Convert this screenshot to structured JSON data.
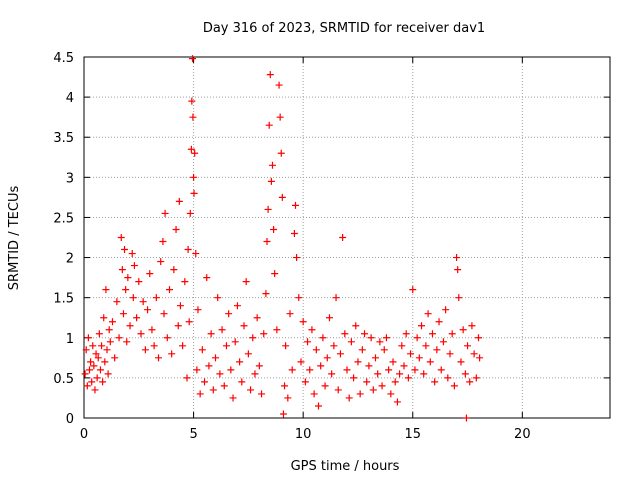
{
  "chart_data": {
    "type": "scatter",
    "title": "Day 316 of 2023, SRMTID for receiver dav1",
    "xlabel": "GPS time / hours",
    "ylabel": "SRMTID / TECUs",
    "xlim": [
      0,
      24
    ],
    "ylim": [
      0,
      4.5
    ],
    "x_ticks": [
      0,
      5,
      10,
      15,
      20
    ],
    "x_tick_labels": [
      "0",
      "5",
      "10",
      "15",
      "20"
    ],
    "y_ticks": [
      0,
      0.5,
      1,
      1.5,
      2,
      2.5,
      3,
      3.5,
      4,
      4.5
    ],
    "y_tick_labels": [
      "0",
      "0.5",
      "1",
      "1.5",
      "2",
      "2.5",
      "3",
      "3.5",
      "4",
      "4.5"
    ],
    "grid": true,
    "marker": "+",
    "series": [
      {
        "name": "dav1",
        "color": "#ff0000",
        "points": [
          [
            0.05,
            0.55
          ],
          [
            0.1,
            0.85
          ],
          [
            0.15,
            0.4
          ],
          [
            0.2,
            1.0
          ],
          [
            0.25,
            0.6
          ],
          [
            0.3,
            0.7
          ],
          [
            0.35,
            0.45
          ],
          [
            0.4,
            0.9
          ],
          [
            0.45,
            0.65
          ],
          [
            0.5,
            0.35
          ],
          [
            0.55,
            0.8
          ],
          [
            0.6,
            0.5
          ],
          [
            0.65,
            0.75
          ],
          [
            0.7,
            1.05
          ],
          [
            0.75,
            0.6
          ],
          [
            0.8,
            0.9
          ],
          [
            0.85,
            0.45
          ],
          [
            0.9,
            1.25
          ],
          [
            0.95,
            0.7
          ],
          [
            1.0,
            1.6
          ],
          [
            1.05,
            0.85
          ],
          [
            1.1,
            0.55
          ],
          [
            1.15,
            1.1
          ],
          [
            1.2,
            0.95
          ],
          [
            1.3,
            1.2
          ],
          [
            1.4,
            0.75
          ],
          [
            1.5,
            1.45
          ],
          [
            1.6,
            1.0
          ],
          [
            1.7,
            2.25
          ],
          [
            1.75,
            1.85
          ],
          [
            1.8,
            1.3
          ],
          [
            1.85,
            2.1
          ],
          [
            1.9,
            1.6
          ],
          [
            1.95,
            0.95
          ],
          [
            2.0,
            1.75
          ],
          [
            2.1,
            1.15
          ],
          [
            2.2,
            2.05
          ],
          [
            2.25,
            1.5
          ],
          [
            2.3,
            1.9
          ],
          [
            2.4,
            1.25
          ],
          [
            2.5,
            1.7
          ],
          [
            2.6,
            1.05
          ],
          [
            2.7,
            1.45
          ],
          [
            2.8,
            0.85
          ],
          [
            2.9,
            1.35
          ],
          [
            3.0,
            1.8
          ],
          [
            3.1,
            1.1
          ],
          [
            3.2,
            0.9
          ],
          [
            3.3,
            1.5
          ],
          [
            3.4,
            0.75
          ],
          [
            3.5,
            1.95
          ],
          [
            3.6,
            2.2
          ],
          [
            3.65,
            1.3
          ],
          [
            3.7,
            2.55
          ],
          [
            3.8,
            1.0
          ],
          [
            3.9,
            1.6
          ],
          [
            4.0,
            0.8
          ],
          [
            4.1,
            1.85
          ],
          [
            4.2,
            2.35
          ],
          [
            4.3,
            1.15
          ],
          [
            4.35,
            2.7
          ],
          [
            4.4,
            1.4
          ],
          [
            4.5,
            0.9
          ],
          [
            4.6,
            1.7
          ],
          [
            4.7,
            0.5
          ],
          [
            4.75,
            2.1
          ],
          [
            4.8,
            1.2
          ],
          [
            4.85,
            2.55
          ],
          [
            4.9,
            3.35
          ],
          [
            4.92,
            3.95
          ],
          [
            4.95,
            4.48
          ],
          [
            4.97,
            3.75
          ],
          [
            5.0,
            3.0
          ],
          [
            5.02,
            2.8
          ],
          [
            5.05,
            3.3
          ],
          [
            5.1,
            2.05
          ],
          [
            5.15,
            0.6
          ],
          [
            5.2,
            1.35
          ],
          [
            5.3,
            0.3
          ],
          [
            5.4,
            0.85
          ],
          [
            5.5,
            0.45
          ],
          [
            5.6,
            1.75
          ],
          [
            5.7,
            0.65
          ],
          [
            5.8,
            1.05
          ],
          [
            5.9,
            0.35
          ],
          [
            6.0,
            0.75
          ],
          [
            6.1,
            1.5
          ],
          [
            6.2,
            0.55
          ],
          [
            6.3,
            1.1
          ],
          [
            6.4,
            0.4
          ],
          [
            6.5,
            0.9
          ],
          [
            6.6,
            1.3
          ],
          [
            6.7,
            0.6
          ],
          [
            6.8,
            0.25
          ],
          [
            6.9,
            0.95
          ],
          [
            7.0,
            1.4
          ],
          [
            7.1,
            0.7
          ],
          [
            7.2,
            0.45
          ],
          [
            7.3,
            1.15
          ],
          [
            7.4,
            1.7
          ],
          [
            7.5,
            0.8
          ],
          [
            7.6,
            0.35
          ],
          [
            7.7,
            1.0
          ],
          [
            7.8,
            0.55
          ],
          [
            7.9,
            1.25
          ],
          [
            8.0,
            0.65
          ],
          [
            8.1,
            0.3
          ],
          [
            8.2,
            1.05
          ],
          [
            8.3,
            1.55
          ],
          [
            8.35,
            2.2
          ],
          [
            8.4,
            2.6
          ],
          [
            8.45,
            3.65
          ],
          [
            8.5,
            4.28
          ],
          [
            8.55,
            2.95
          ],
          [
            8.6,
            3.15
          ],
          [
            8.65,
            2.35
          ],
          [
            8.7,
            1.8
          ],
          [
            8.8,
            1.1
          ],
          [
            8.9,
            4.15
          ],
          [
            8.95,
            3.75
          ],
          [
            9.0,
            3.3
          ],
          [
            9.05,
            2.75
          ],
          [
            9.1,
            0.05
          ],
          [
            9.15,
            0.4
          ],
          [
            9.2,
            0.9
          ],
          [
            9.3,
            0.25
          ],
          [
            9.4,
            1.3
          ],
          [
            9.5,
            0.6
          ],
          [
            9.6,
            2.3
          ],
          [
            9.65,
            2.65
          ],
          [
            9.7,
            2.0
          ],
          [
            9.8,
            1.5
          ],
          [
            9.9,
            0.7
          ],
          [
            10.0,
            1.2
          ],
          [
            10.1,
            0.45
          ],
          [
            10.2,
            0.95
          ],
          [
            10.3,
            0.6
          ],
          [
            10.4,
            1.1
          ],
          [
            10.5,
            0.3
          ],
          [
            10.6,
            0.85
          ],
          [
            10.7,
            0.15
          ],
          [
            10.8,
            0.65
          ],
          [
            10.9,
            1.0
          ],
          [
            11.0,
            0.4
          ],
          [
            11.1,
            0.75
          ],
          [
            11.2,
            1.25
          ],
          [
            11.3,
            0.55
          ],
          [
            11.4,
            0.9
          ],
          [
            11.5,
            1.5
          ],
          [
            11.6,
            0.35
          ],
          [
            11.7,
            0.8
          ],
          [
            11.8,
            2.25
          ],
          [
            11.9,
            1.05
          ],
          [
            12.0,
            0.6
          ],
          [
            12.1,
            0.25
          ],
          [
            12.2,
            0.95
          ],
          [
            12.3,
            0.5
          ],
          [
            12.4,
            1.15
          ],
          [
            12.5,
            0.7
          ],
          [
            12.6,
            0.3
          ],
          [
            12.7,
            0.85
          ],
          [
            12.8,
            1.05
          ],
          [
            12.9,
            0.45
          ],
          [
            13.0,
            0.65
          ],
          [
            13.1,
            1.0
          ],
          [
            13.2,
            0.35
          ],
          [
            13.3,
            0.75
          ],
          [
            13.4,
            0.55
          ],
          [
            13.5,
            0.95
          ],
          [
            13.6,
            0.4
          ],
          [
            13.7,
            0.85
          ],
          [
            13.8,
            1.0
          ],
          [
            13.9,
            0.6
          ],
          [
            14.0,
            0.3
          ],
          [
            14.1,
            0.7
          ],
          [
            14.2,
            0.45
          ],
          [
            14.3,
            0.2
          ],
          [
            14.4,
            0.55
          ],
          [
            14.5,
            0.9
          ],
          [
            14.6,
            0.65
          ],
          [
            14.7,
            1.05
          ],
          [
            14.8,
            0.5
          ],
          [
            14.9,
            0.8
          ],
          [
            15.0,
            1.6
          ],
          [
            15.1,
            0.6
          ],
          [
            15.2,
            1.0
          ],
          [
            15.3,
            0.75
          ],
          [
            15.4,
            1.15
          ],
          [
            15.5,
            0.55
          ],
          [
            15.6,
            0.9
          ],
          [
            15.7,
            1.3
          ],
          [
            15.8,
            0.7
          ],
          [
            15.9,
            1.05
          ],
          [
            16.0,
            0.45
          ],
          [
            16.1,
            0.85
          ],
          [
            16.2,
            1.2
          ],
          [
            16.3,
            0.6
          ],
          [
            16.4,
            0.95
          ],
          [
            16.5,
            1.35
          ],
          [
            16.6,
            0.5
          ],
          [
            16.7,
            0.8
          ],
          [
            16.8,
            1.05
          ],
          [
            16.9,
            0.4
          ],
          [
            17.0,
            2.0
          ],
          [
            17.05,
            1.85
          ],
          [
            17.1,
            1.5
          ],
          [
            17.2,
            0.7
          ],
          [
            17.3,
            1.1
          ],
          [
            17.4,
            0.55
          ],
          [
            17.45,
            0.0
          ],
          [
            17.5,
            0.9
          ],
          [
            17.6,
            0.45
          ],
          [
            17.7,
            1.15
          ],
          [
            17.8,
            0.8
          ],
          [
            17.9,
            0.5
          ],
          [
            18.0,
            1.0
          ],
          [
            18.05,
            0.75
          ]
        ]
      }
    ]
  }
}
